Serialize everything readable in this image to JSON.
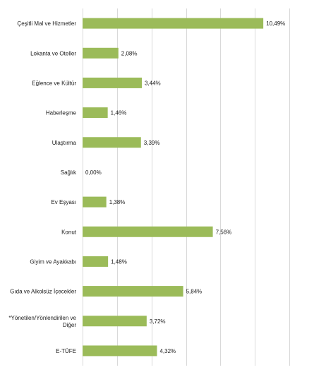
{
  "chart_data": {
    "type": "bar",
    "orientation": "horizontal",
    "categories": [
      "Çeşitli Mal ve Hizmetler",
      "Lokanta ve Oteller",
      "Eğlence ve Kültür",
      "Haberleşme",
      "Ulaştırma",
      "Sağlık",
      "Ev Eşyası",
      "Konut",
      "Giyim ve Ayakkabı",
      "Gıda ve Alkolsüz İçecekler",
      "*Yönetilen/Yönlendirilen ve Diğer",
      "E-TÜFE"
    ],
    "category_lines": [
      [
        "Çeşitli Mal ve Hizmetler"
      ],
      [
        "Lokanta ve Oteller"
      ],
      [
        "Eğlence ve Kültür"
      ],
      [
        "Haberleşme"
      ],
      [
        "Ulaştırma"
      ],
      [
        "Sağlık"
      ],
      [
        "Ev Eşyası"
      ],
      [
        "Konut"
      ],
      [
        "Giyim ve Ayakkabı"
      ],
      [
        "Gıda ve Alkolsüz İçecekler"
      ],
      [
        "*Yönetilen/Yönlendirilen ve",
        "Diğer"
      ],
      [
        "E-TÜFE"
      ]
    ],
    "values": [
      10.49,
      2.08,
      3.44,
      1.46,
      3.39,
      0.0,
      1.38,
      7.56,
      1.48,
      5.84,
      3.72,
      4.32
    ],
    "data_labels": [
      "10,49%",
      "2,08%",
      "3,44%",
      "1,46%",
      "3,39%",
      "0,00%",
      "1,38%",
      "7,56%",
      "1,48%",
      "5,84%",
      "3,72%",
      "4,32%"
    ],
    "title": "",
    "xlabel": "",
    "ylabel": "",
    "xlim": [
      0,
      12
    ],
    "x_gridlines": [
      0,
      2,
      4,
      6,
      8,
      10,
      12
    ],
    "grid": true,
    "legend": "none",
    "colors": {
      "bar": "#9bbb59",
      "grid": "#d9d9d9",
      "text": "#1a1a1a"
    }
  }
}
